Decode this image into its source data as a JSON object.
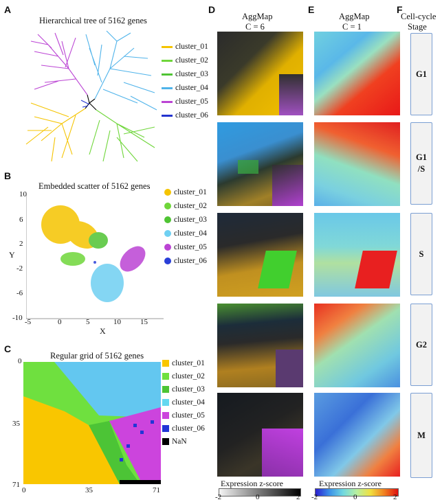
{
  "panels": {
    "A": "A",
    "B": "B",
    "C": "C",
    "D": "D",
    "E": "E",
    "F": "F"
  },
  "panelA": {
    "title": "Hierarchical tree of 5162 genes"
  },
  "panelB": {
    "title": "Embedded scatter of 5162 genes",
    "xlabel": "X",
    "ylabel": "Y",
    "xticks": [
      "-5",
      "0",
      "5",
      "10",
      "15"
    ],
    "yticks": [
      "10",
      "6",
      "2",
      "-2",
      "-6",
      "-10"
    ]
  },
  "panelC": {
    "title": "Regular grid of 5162 genes",
    "xticks": [
      "0",
      "35",
      "71"
    ],
    "yticks": [
      "0",
      "35",
      "71"
    ]
  },
  "legendTree": [
    {
      "label": "cluster_01",
      "color": "#f5c400"
    },
    {
      "label": "cluster_02",
      "color": "#6fd63a"
    },
    {
      "label": "cluster_03",
      "color": "#4fc433"
    },
    {
      "label": "cluster_04",
      "color": "#4fb3ea"
    },
    {
      "label": "cluster_05",
      "color": "#bb44d4"
    },
    {
      "label": "cluster_06",
      "color": "#2333cf"
    }
  ],
  "legendScatter": [
    {
      "label": "cluster_01",
      "color": "#f5c400"
    },
    {
      "label": "cluster_02",
      "color": "#6fd63a"
    },
    {
      "label": "cluster_03",
      "color": "#4fc433"
    },
    {
      "label": "cluster_04",
      "color": "#6fd0f2"
    },
    {
      "label": "cluster_05",
      "color": "#bb44d4"
    },
    {
      "label": "cluster_06",
      "color": "#2a3fd8"
    }
  ],
  "legendGrid": [
    {
      "label": "cluster_01",
      "color": "#f9c600"
    },
    {
      "label": "cluster_02",
      "color": "#6fe03f"
    },
    {
      "label": "cluster_03",
      "color": "#4cc436"
    },
    {
      "label": "cluster_04",
      "color": "#63d8f0"
    },
    {
      "label": "cluster_05",
      "color": "#cc44dd"
    },
    {
      "label": "cluster_06",
      "color": "#2235d6"
    },
    {
      "label": "NaN",
      "color": "#000000"
    }
  ],
  "panelD": {
    "title1": "AggMap",
    "title2": "C = 6",
    "colorbar_label": "Expression  z-score",
    "ticks": [
      "-2",
      "0",
      "2"
    ]
  },
  "panelE": {
    "title1": "AggMap",
    "title2": "C = 1",
    "colorbar_label": "Expression z-score",
    "ticks": [
      "-2",
      "0",
      "2"
    ]
  },
  "panelF": {
    "title1": "Cell-cycle",
    "title2": "Stage"
  },
  "stages": [
    {
      "l1": "G1",
      "l2": ""
    },
    {
      "l1": "G1",
      "l2": "/S"
    },
    {
      "l1": "S",
      "l2": ""
    },
    {
      "l1": "G2",
      "l2": ""
    },
    {
      "l1": "M",
      "l2": ""
    }
  ]
}
